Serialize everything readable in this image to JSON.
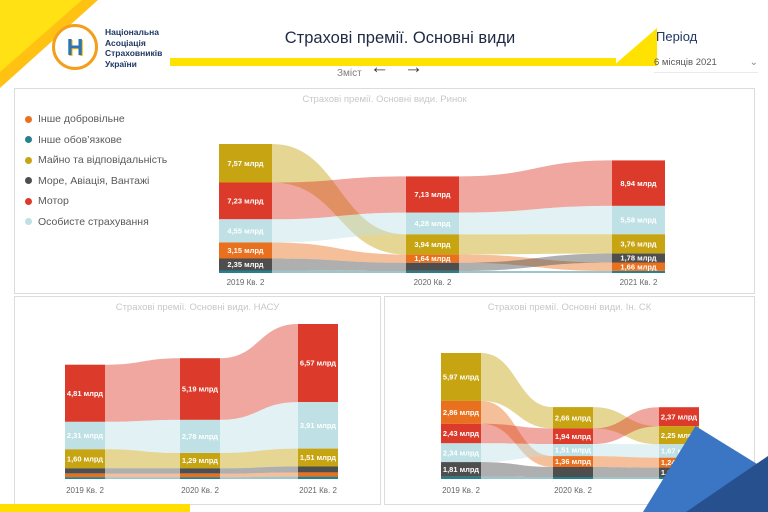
{
  "header": {
    "logo": {
      "letter": "Н",
      "lines": [
        "Національна",
        "Асоціація",
        "Страховників",
        "України"
      ]
    },
    "title": "Страхові премії. Основні види",
    "nav": {
      "label": "Зміст",
      "back_icon": "←",
      "forward_icon": "→"
    },
    "period": {
      "label": "Період",
      "value": "6 місяців 2021",
      "chevron_icon": "⌄"
    }
  },
  "legend": [
    {
      "series": "inshe_dobrovilne",
      "label": "Інше добровільне"
    },
    {
      "series": "inshe_obovyazkove",
      "label": "Інше обов’язкове"
    },
    {
      "series": "mayno",
      "label": "Майно та відповідальність"
    },
    {
      "series": "more",
      "label": "Море, Авіація, Вантажі"
    },
    {
      "series": "motor",
      "label": "Мотор"
    },
    {
      "series": "osobyste",
      "label": "Особисте страхування"
    }
  ],
  "colors": {
    "accent_yellow": "#FFE200",
    "navy": "#1F3864",
    "panel_border": "#DCDCDC",
    "chart_title_gray": "#C8C8C8",
    "axis_gray": "#666666",
    "deco_blue_light": "#3B76C4",
    "deco_blue_dark": "#27508F",
    "series": {
      "inshe_dobrovilne": "#E9701E",
      "inshe_obovyazkove": "#26818E",
      "mayno": "#C7A412",
      "more": "#4E4E4E",
      "motor": "#DC3B2B",
      "osobyste": "#BFE0E4"
    }
  },
  "chart_data": [
    {
      "type": "ribbon",
      "title": "Страхові премії. Основні види. Ринок",
      "categories": [
        "2019 Кв. 2",
        "2020 Кв. 2",
        "2021 Кв. 2"
      ],
      "value_unit": "млрд",
      "columns": [
        {
          "category": "2019 Кв. 2",
          "segments": [
            {
              "series": "mayno",
              "value": 7.57,
              "label": "7,57 млрд"
            },
            {
              "series": "motor",
              "value": 7.23,
              "label": "7,23 млрд"
            },
            {
              "series": "osobyste",
              "value": 4.55,
              "label": "4,55 млрд"
            },
            {
              "series": "inshe_dobrovilne",
              "value": 3.15,
              "label": "3,15 млрд"
            },
            {
              "series": "more",
              "value": 2.35,
              "label": "2,35 млрд"
            },
            {
              "series": "inshe_obovyazkove",
              "value": 0.5,
              "label": null
            }
          ]
        },
        {
          "category": "2020 Кв. 2",
          "segments": [
            {
              "series": "motor",
              "value": 7.13,
              "label": "7,13 млрд"
            },
            {
              "series": "osobyste",
              "value": 4.28,
              "label": "4,28 млрд"
            },
            {
              "series": "mayno",
              "value": 3.94,
              "label": "3,94 млрд"
            },
            {
              "series": "inshe_dobrovilne",
              "value": 1.64,
              "label": "1,64 млрд"
            },
            {
              "series": "more",
              "value": 1.6,
              "label": null
            },
            {
              "series": "inshe_obovyazkove",
              "value": 0.4,
              "label": null
            }
          ]
        },
        {
          "category": "2021 Кв. 2",
          "segments": [
            {
              "series": "motor",
              "value": 8.94,
              "label": "8,94 млрд"
            },
            {
              "series": "osobyste",
              "value": 5.58,
              "label": "5,58 млрд"
            },
            {
              "series": "mayno",
              "value": 3.76,
              "label": "3,76 млрд"
            },
            {
              "series": "more",
              "value": 1.78,
              "label": "1,78 млрд"
            },
            {
              "series": "inshe_dobrovilne",
              "value": 1.66,
              "label": "1,66 млрд"
            },
            {
              "series": "inshe_obovyazkove",
              "value": 0.4,
              "label": null
            }
          ]
        }
      ]
    },
    {
      "type": "ribbon",
      "title": "Страхові премії. Основні види. НАСУ",
      "categories": [
        "2019 Кв. 2",
        "2020 Кв. 2",
        "2021 Кв. 2"
      ],
      "value_unit": "млрд",
      "columns": [
        {
          "category": "2019 Кв. 2",
          "segments": [
            {
              "series": "motor",
              "value": 4.81,
              "label": "4,81 млрд"
            },
            {
              "series": "osobyste",
              "value": 2.31,
              "label": "2,31 млрд"
            },
            {
              "series": "mayno",
              "value": 1.6,
              "label": "1,60 млрд"
            },
            {
              "series": "more",
              "value": 0.45,
              "label": null
            },
            {
              "series": "inshe_dobrovilne",
              "value": 0.3,
              "label": null
            },
            {
              "series": "inshe_obovyazkove",
              "value": 0.15,
              "label": null
            }
          ]
        },
        {
          "category": "2020 Кв. 2",
          "segments": [
            {
              "series": "motor",
              "value": 5.19,
              "label": "5,19 млрд"
            },
            {
              "series": "osobyste",
              "value": 2.78,
              "label": "2,78 млрд"
            },
            {
              "series": "mayno",
              "value": 1.29,
              "label": "1,29 млрд"
            },
            {
              "series": "more",
              "value": 0.45,
              "label": null
            },
            {
              "series": "inshe_dobrovilne",
              "value": 0.3,
              "label": null
            },
            {
              "series": "inshe_obovyazkove",
              "value": 0.15,
              "label": null
            }
          ]
        },
        {
          "category": "2021 Кв. 2",
          "segments": [
            {
              "series": "motor",
              "value": 6.57,
              "label": "6,57 млрд"
            },
            {
              "series": "osobyste",
              "value": 3.91,
              "label": "3,91 млрд"
            },
            {
              "series": "mayno",
              "value": 1.51,
              "label": "1,51 млрд"
            },
            {
              "series": "more",
              "value": 0.5,
              "label": null
            },
            {
              "series": "inshe_dobrovilne",
              "value": 0.35,
              "label": null
            },
            {
              "series": "inshe_obovyazkove",
              "value": 0.2,
              "label": null
            }
          ]
        }
      ]
    },
    {
      "type": "ribbon",
      "title": "Страхові премії. Основні види. Ін. СК",
      "categories": [
        "2019 Кв. 2",
        "2020 Кв. 2",
        "2021 Кв. 2"
      ],
      "value_unit": "млрд",
      "columns": [
        {
          "category": "2019 Кв. 2",
          "segments": [
            {
              "series": "mayno",
              "value": 5.97,
              "label": "5,97 млрд"
            },
            {
              "series": "inshe_dobrovilne",
              "value": 2.86,
              "label": "2,86 млрд"
            },
            {
              "series": "motor",
              "value": 2.43,
              "label": "2,43 млрд"
            },
            {
              "series": "osobyste",
              "value": 2.34,
              "label": "2,34 млрд"
            },
            {
              "series": "more",
              "value": 1.81,
              "label": "1,81 млрд"
            },
            {
              "series": "inshe_obovyazkove",
              "value": 0.3,
              "label": null
            }
          ]
        },
        {
          "category": "2020 Кв. 2",
          "segments": [
            {
              "series": "mayno",
              "value": 2.66,
              "label": "2,66 млрд"
            },
            {
              "series": "motor",
              "value": 1.94,
              "label": "1,94 млрд"
            },
            {
              "series": "osobyste",
              "value": 1.51,
              "label": "1,51 млрд"
            },
            {
              "series": "inshe_dobrovilne",
              "value": 1.36,
              "label": "1,36 млрд"
            },
            {
              "series": "more",
              "value": 1.25,
              "label": null
            },
            {
              "series": "inshe_obovyazkove",
              "value": 0.25,
              "label": null
            }
          ]
        },
        {
          "category": "2021 Кв. 2",
          "segments": [
            {
              "series": "motor",
              "value": 2.37,
              "label": "2,37 млрд"
            },
            {
              "series": "mayno",
              "value": 2.25,
              "label": "2,25 млрд"
            },
            {
              "series": "osobyste",
              "value": 1.67,
              "label": "1,67 млрд"
            },
            {
              "series": "inshe_dobrovilne",
              "value": 1.24,
              "label": "1,24 млрд"
            },
            {
              "series": "more",
              "value": 1.17,
              "label": "1,17 млрд"
            },
            {
              "series": "inshe_obovyazkove",
              "value": 0.25,
              "label": null
            }
          ]
        }
      ]
    }
  ]
}
